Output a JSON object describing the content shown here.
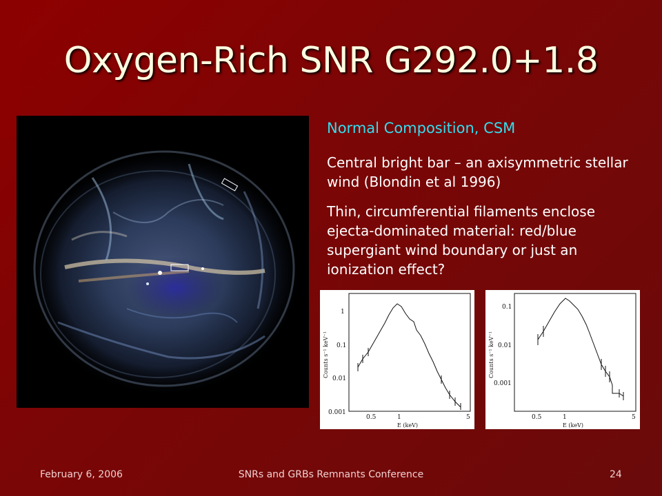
{
  "slide": {
    "title": "Oxygen-Rich SNR G292.0+1.8",
    "subtitle": "Normal Composition, CSM",
    "paragraphs": [
      "Central bright bar – an axisymmetric stellar wind (Blondin et al 1996)",
      "Thin, circumferential filaments enclose ejecta-dominated material: red/blue supergiant wind boundary or just an ionization effect?"
    ],
    "footer": {
      "date": "February 6, 2006",
      "conference": "SNRs and GRBs Remnants Conference",
      "page": "24"
    }
  },
  "spectra": [
    {
      "ylabel": "Counts s⁻¹ keV⁻¹",
      "xlabel": "E (keV)",
      "yticks": [
        "1",
        "0.1",
        "0.01",
        "0.001"
      ],
      "xticks": [
        "0.5",
        "1",
        "5"
      ]
    },
    {
      "ylabel": "Counts s⁻¹ keV⁻¹",
      "xlabel": "E (keV)",
      "yticks": [
        "0.1",
        "0.01",
        "0.001"
      ],
      "xticks": [
        "0.5",
        "1",
        "5"
      ]
    }
  ]
}
